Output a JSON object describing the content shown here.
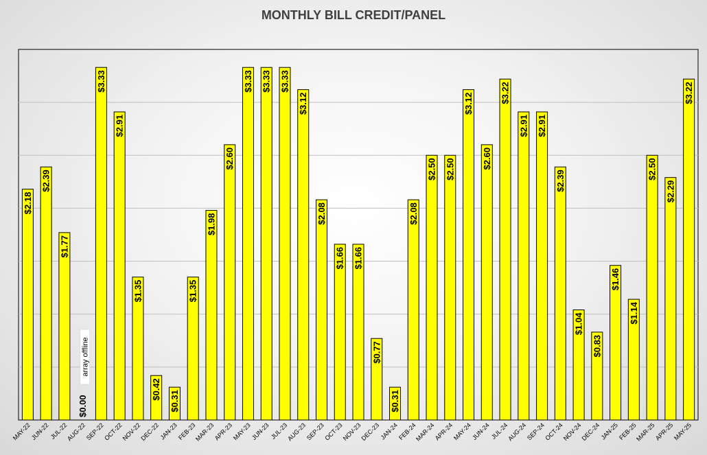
{
  "chart_data": {
    "type": "bar",
    "title": "MONTHLY BILL CREDIT/PANEL",
    "categories": [
      "MAY-22",
      "JUN-22",
      "JUL-22",
      "AUG-22",
      "SEP-22",
      "OCT-22",
      "NOV-22",
      "DEC-22",
      "JAN-23",
      "FEB-23",
      "MAR-23",
      "APR-23",
      "MAY-23",
      "JUN-23",
      "JUL-23",
      "AUG-23",
      "SEP-23",
      "OCT-23",
      "NOV-23",
      "DEC-23",
      "JAN-24",
      "FEB-24",
      "MAR-24",
      "APR-24",
      "MAY-24",
      "JUN-24",
      "JUL-24",
      "AUG-24",
      "SEP-24",
      "OCT-24",
      "NOV-24",
      "DEC-24",
      "JAN-25",
      "FEB-25",
      "MAR-25",
      "APR-25",
      "MAY-25"
    ],
    "values": [
      2.18,
      2.39,
      1.77,
      0.0,
      3.33,
      2.91,
      1.35,
      0.42,
      0.31,
      1.35,
      1.98,
      2.6,
      3.33,
      3.33,
      3.33,
      3.12,
      2.08,
      1.66,
      1.66,
      0.77,
      0.31,
      2.08,
      2.5,
      2.5,
      3.12,
      2.6,
      3.22,
      2.91,
      2.91,
      2.39,
      1.04,
      0.83,
      1.46,
      1.14,
      2.5,
      2.29,
      3.22
    ],
    "labels": [
      "$2.18",
      "$2.39",
      "$1.77",
      "$0.00",
      "$3.33",
      "$2.91",
      "$1.35",
      "$0.42",
      "$0.31",
      "$1.35",
      "$1.98",
      "$2.60",
      "$3.33",
      "$3.33",
      "$3.33",
      "$3.12",
      "$2.08",
      "$1.66",
      "$1.66",
      "$0.77",
      "$0.31",
      "$2.08",
      "$2.50",
      "$2.50",
      "$3.12",
      "$2.60",
      "$3.22",
      "$2.91",
      "$2.91",
      "$2.39",
      "$1.04",
      "$0.83",
      "$1.46",
      "$1.14",
      "$2.50",
      "$2.29",
      "$3.22"
    ],
    "annotations": [
      {
        "category": "AUG-22",
        "text": "array offline"
      }
    ],
    "xlabel": "",
    "ylabel": "",
    "ylim": [
      0,
      3.5
    ],
    "grid": true,
    "colors": {
      "bar_fill": "#FFFF00",
      "bar_stroke": "#000000",
      "gridline": "#BFBFBF",
      "title": "#404040"
    }
  }
}
